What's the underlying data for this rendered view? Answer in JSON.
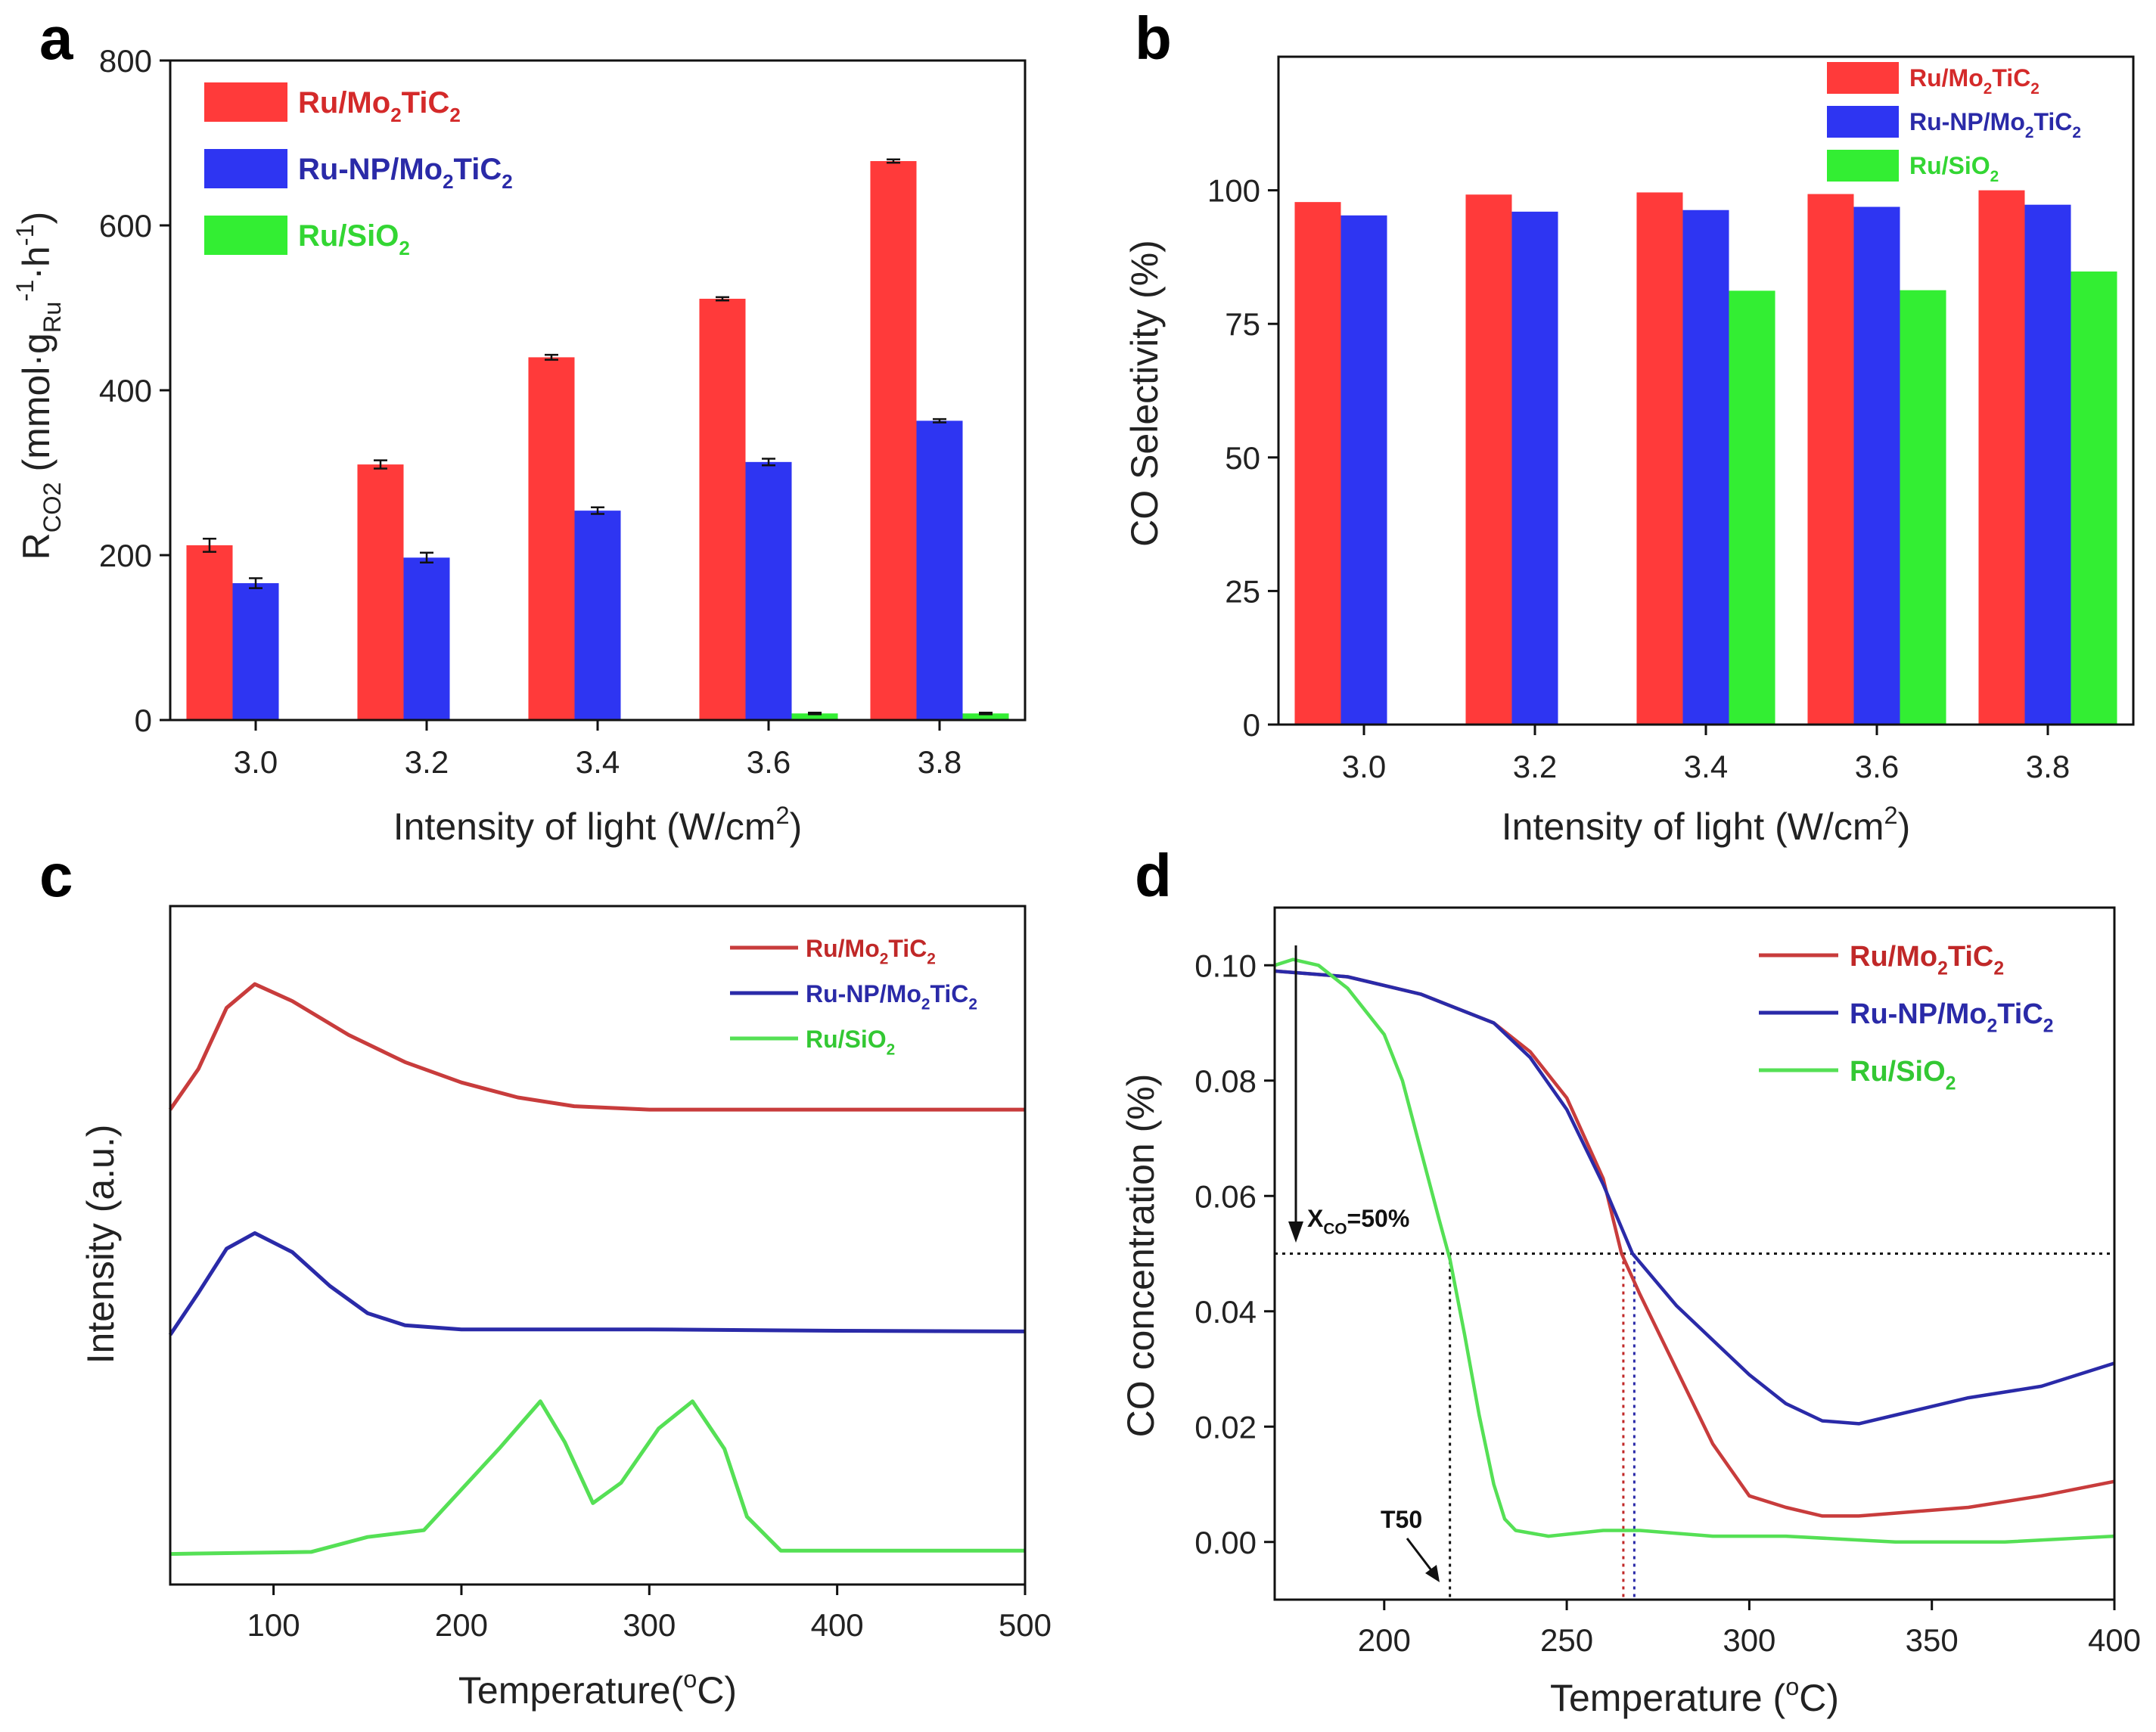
{
  "colors": {
    "ru_mo2tic2": "#ff3a3a",
    "ru_np_mo2tic2": "#2e35f2",
    "ru_sio2": "#33ee33",
    "line_ru_mo2tic2": "#c83c3c",
    "line_ru_np_mo2tic2": "#2a2aa8",
    "line_ru_sio2": "#55e055",
    "axis": "#111111"
  },
  "chart_data": [
    {
      "panel": "a",
      "type": "bar",
      "ylabel": {
        "main": "R",
        "sub": "CO2",
        "rest": " (mmol·g",
        "sub2": "Ru",
        "sup1": "-1",
        "mid": "·h",
        "sup2": "-1",
        "end": ")"
      },
      "xlabel": {
        "main": "Intensity of light (W/cm",
        "sup": "2",
        "end": ")"
      },
      "categories": [
        "3.0",
        "3.2",
        "3.4",
        "3.6",
        "3.8"
      ],
      "ylim": [
        0,
        800
      ],
      "yticks": [
        "0",
        "200",
        "400",
        "600",
        "800"
      ],
      "series": [
        {
          "name": "Ru/Mo2TiC2",
          "values": [
            212,
            310,
            440,
            511,
            678
          ],
          "errors": [
            8,
            5,
            3,
            2,
            2
          ]
        },
        {
          "name": "Ru-NP/Mo2TiC2",
          "values": [
            166,
            197,
            254,
            313,
            363
          ],
          "errors": [
            6,
            6,
            4,
            4,
            2
          ]
        },
        {
          "name": "Ru/SiO2",
          "values": [
            0,
            0,
            0,
            8,
            8
          ],
          "errors": [
            0,
            0,
            0,
            1,
            1
          ]
        }
      ],
      "legend": [
        {
          "label": "Ru/Mo",
          "sub": "2",
          "mid": "TiC",
          "sub2": "2"
        },
        {
          "label": "Ru-NP/Mo",
          "sub": "2",
          "mid": "TiC",
          "sub2": "2"
        },
        {
          "label": "Ru/SiO",
          "sub": "2",
          "mid": "",
          "sub2": ""
        }
      ]
    },
    {
      "panel": "b",
      "type": "bar",
      "ylabel": "CO Selectivity (%)",
      "xlabel": {
        "main": "Intensity of light (W/cm",
        "sup": "2",
        "end": ")"
      },
      "categories": [
        "3.0",
        "3.2",
        "3.4",
        "3.6",
        "3.8"
      ],
      "ylim": [
        0,
        125
      ],
      "yticks": [
        "0",
        "25",
        "50",
        "75",
        "100"
      ],
      "series": [
        {
          "name": "Ru/Mo2TiC2",
          "values": [
            97.8,
            99.2,
            99.6,
            99.3,
            100
          ]
        },
        {
          "name": "Ru-NP/Mo2TiC2",
          "values": [
            95.3,
            96.0,
            96.3,
            96.9,
            97.3
          ]
        },
        {
          "name": "Ru/SiO2",
          "values": [
            0,
            0,
            81.2,
            81.3,
            84.8
          ]
        }
      ],
      "legend": [
        {
          "label": "Ru/Mo",
          "sub": "2",
          "mid": "TiC",
          "sub2": "2"
        },
        {
          "label": "Ru-NP/Mo",
          "sub": "2",
          "mid": "TiC",
          "sub2": "2"
        },
        {
          "label": "Ru/SiO",
          "sub": "2",
          "mid": "",
          "sub2": ""
        }
      ]
    },
    {
      "panel": "c",
      "type": "line",
      "ylabel": "Intensity (a.u.)",
      "xlabel": {
        "main": "Temperature(",
        "sup": "o",
        "end": "C)"
      },
      "xlim": [
        45,
        500
      ],
      "xticks": [
        "100",
        "200",
        "300",
        "400",
        "500"
      ],
      "ylim": [
        0,
        1
      ],
      "series": [
        {
          "name": "Ru/Mo2TiC2",
          "x": [
            45,
            60,
            75,
            90,
            110,
            140,
            170,
            200,
            230,
            260,
            300,
            400,
            500
          ],
          "y": [
            0.7,
            0.76,
            0.85,
            0.885,
            0.86,
            0.81,
            0.77,
            0.74,
            0.718,
            0.705,
            0.7,
            0.7,
            0.7
          ]
        },
        {
          "name": "Ru-NP/Mo2TiC2",
          "x": [
            45,
            60,
            75,
            90,
            110,
            130,
            150,
            170,
            200,
            300,
            400,
            500
          ],
          "y": [
            0.368,
            0.43,
            0.495,
            0.518,
            0.49,
            0.44,
            0.4,
            0.382,
            0.376,
            0.376,
            0.374,
            0.373
          ]
        },
        {
          "name": "Ru/SiO2",
          "x": [
            45,
            120,
            150,
            180,
            200,
            220,
            242,
            255,
            270,
            285,
            305,
            323,
            340,
            352,
            370,
            500
          ],
          "y": [
            0.045,
            0.048,
            0.07,
            0.08,
            0.14,
            0.2,
            0.27,
            0.21,
            0.12,
            0.15,
            0.23,
            0.27,
            0.2,
            0.1,
            0.05,
            0.05
          ]
        }
      ],
      "legend": [
        {
          "label": "Ru/Mo",
          "sub": "2",
          "mid": "TiC",
          "sub2": "2"
        },
        {
          "label": "Ru-NP/Mo",
          "sub": "2",
          "mid": "TiC",
          "sub2": "2"
        },
        {
          "label": "Ru/SiO",
          "sub": "2",
          "mid": "",
          "sub2": ""
        }
      ]
    },
    {
      "panel": "d",
      "type": "line",
      "ylabel": "CO concentration (%)",
      "xlabel": {
        "main": "Temperature (",
        "sup": "o",
        "end": "C)"
      },
      "xlim": [
        170,
        400
      ],
      "xticks": [
        "200",
        "250",
        "300",
        "350",
        "400"
      ],
      "ylim": [
        -0.01,
        0.11
      ],
      "yticks": [
        "0.00",
        "0.02",
        "0.04",
        "0.06",
        "0.08",
        "0.10"
      ],
      "series": [
        {
          "name": "Ru/Mo2TiC2",
          "x": [
            170,
            190,
            210,
            230,
            240,
            250,
            260,
            265,
            270,
            280,
            290,
            300,
            310,
            320,
            330,
            340,
            360,
            380,
            400
          ],
          "y": [
            0.099,
            0.098,
            0.095,
            0.09,
            0.085,
            0.077,
            0.063,
            0.05,
            0.043,
            0.03,
            0.017,
            0.008,
            0.006,
            0.0045,
            0.0045,
            0.005,
            0.006,
            0.008,
            0.0105
          ]
        },
        {
          "name": "Ru-NP/Mo2TiC2",
          "x": [
            170,
            190,
            210,
            230,
            240,
            250,
            260,
            268,
            280,
            290,
            300,
            310,
            320,
            330,
            340,
            360,
            380,
            400
          ],
          "y": [
            0.099,
            0.098,
            0.095,
            0.09,
            0.084,
            0.075,
            0.062,
            0.05,
            0.041,
            0.035,
            0.029,
            0.024,
            0.021,
            0.0205,
            0.022,
            0.025,
            0.027,
            0.031
          ]
        },
        {
          "name": "Ru/SiO2",
          "x": [
            170,
            175,
            182,
            190,
            200,
            205,
            210,
            215,
            218,
            222,
            226,
            230,
            233,
            236,
            245,
            260,
            270,
            290,
            310,
            340,
            370,
            400
          ],
          "y": [
            0.1,
            0.101,
            0.1,
            0.096,
            0.088,
            0.08,
            0.068,
            0.056,
            0.049,
            0.036,
            0.022,
            0.01,
            0.004,
            0.002,
            0.001,
            0.002,
            0.002,
            0.001,
            0.001,
            0.0,
            0.0,
            0.001
          ]
        }
      ],
      "hline": {
        "y": 0.05,
        "label": {
          "main": "X",
          "sub": "CO",
          "end": "=50%"
        }
      },
      "vlines": [
        218,
        265.5,
        268.5
      ],
      "arrow_label": "T50",
      "legend": [
        {
          "label": "Ru/Mo",
          "sub": "2",
          "mid": "TiC",
          "sub2": "2"
        },
        {
          "label": "Ru-NP/Mo",
          "sub": "2",
          "mid": "TiC",
          "sub2": "2"
        },
        {
          "label": "Ru/SiO",
          "sub": "2",
          "mid": "",
          "sub2": ""
        }
      ]
    }
  ],
  "panel_labels": [
    "a",
    "b",
    "c",
    "d"
  ]
}
